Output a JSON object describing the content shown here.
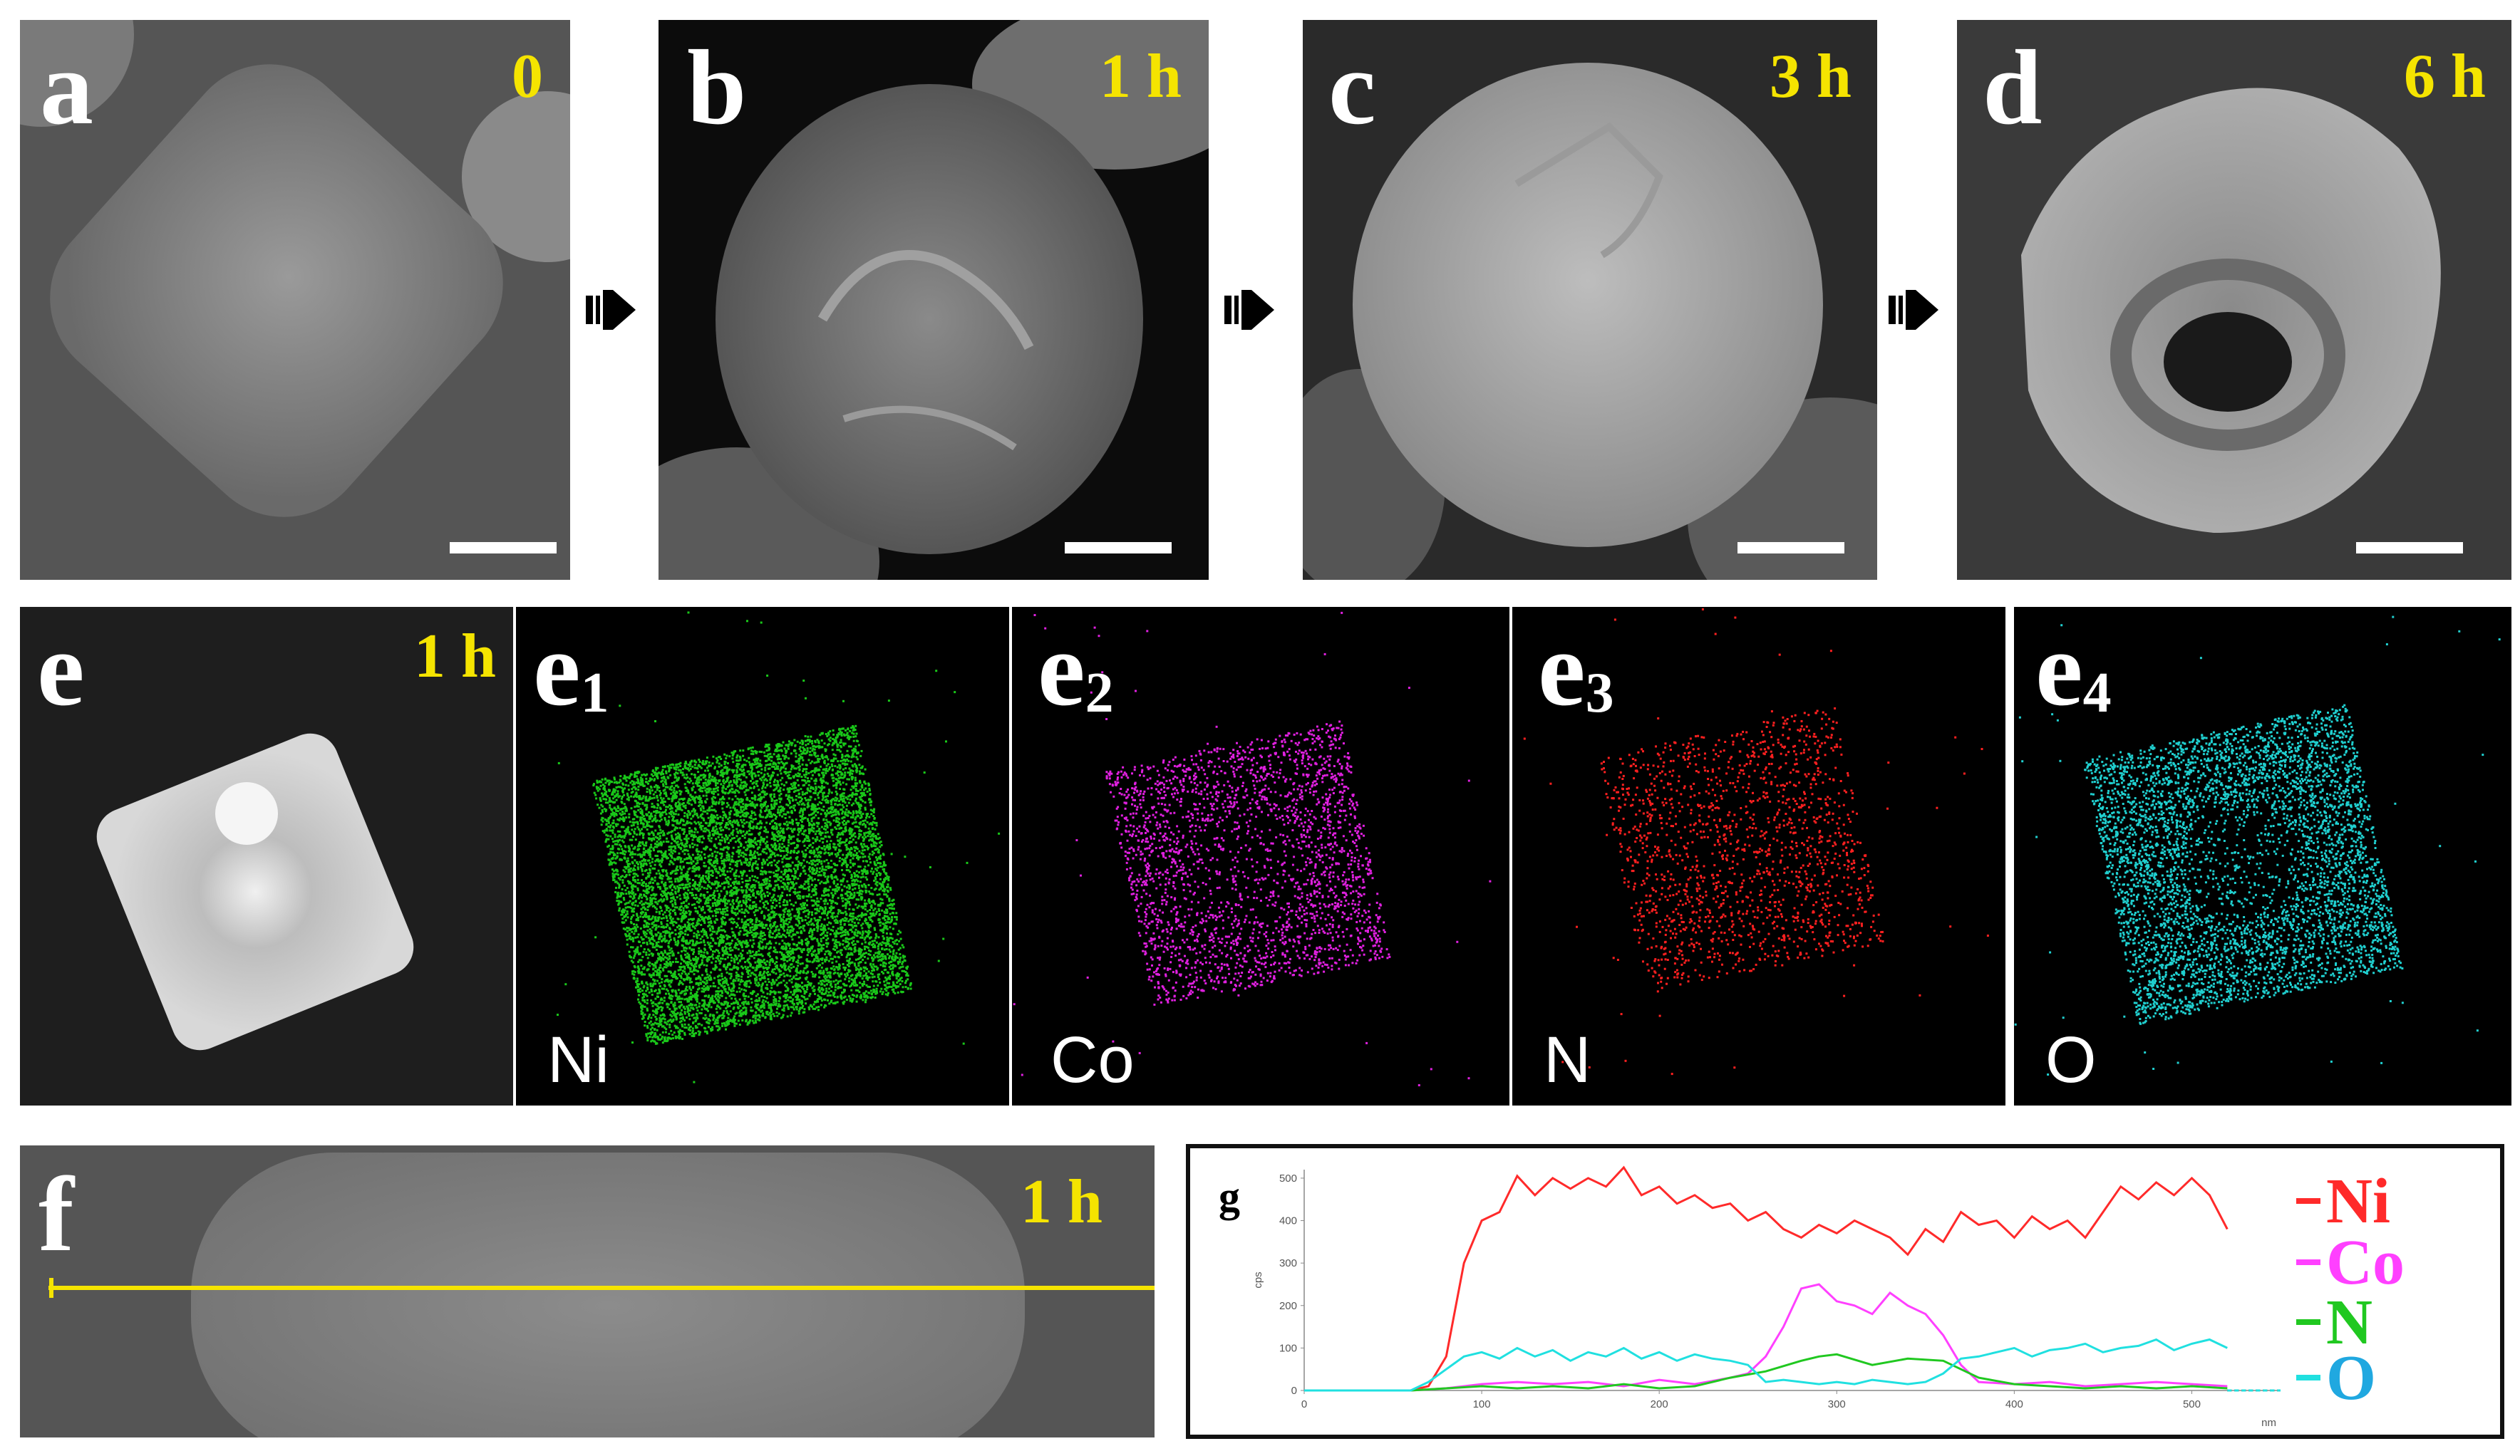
{
  "panels": {
    "a": {
      "letter": "a",
      "time": "0"
    },
    "b": {
      "letter": "b",
      "time": "1 h"
    },
    "c": {
      "letter": "c",
      "time": "3 h"
    },
    "d": {
      "letter": "d",
      "time": "6 h"
    },
    "e": {
      "letter": "e",
      "time": "1 h"
    },
    "e1": {
      "letter": "e",
      "sub": "1",
      "element": "Ni",
      "dot_color": "#19c819"
    },
    "e2": {
      "letter": "e",
      "sub": "2",
      "element": "Co",
      "dot_color": "#e020e0"
    },
    "e3": {
      "letter": "e",
      "sub": "3",
      "element": "N",
      "dot_color": "#ff2020"
    },
    "e4": {
      "letter": "e",
      "sub": "4",
      "element": "O",
      "dot_color": "#20d0d0"
    },
    "f": {
      "letter": "f",
      "time": "1 h",
      "line_color": "#f5e400"
    },
    "g": {
      "letter": "g"
    }
  },
  "chart_data": {
    "type": "line",
    "title": "",
    "xlabel": "nm",
    "ylabel": "cps",
    "xlim": [
      0,
      550
    ],
    "ylim": [
      0,
      520
    ],
    "xticks": [
      0,
      100,
      200,
      300,
      400,
      500
    ],
    "yticks": [
      0,
      100,
      200,
      300,
      400,
      500
    ],
    "legend_position": "right",
    "series": [
      {
        "name": "Ni",
        "color": "#ff2a2a",
        "x": [
          60,
          70,
          80,
          90,
          100,
          110,
          120,
          130,
          140,
          150,
          160,
          170,
          180,
          190,
          200,
          210,
          220,
          230,
          240,
          250,
          260,
          270,
          280,
          290,
          300,
          310,
          320,
          330,
          340,
          350,
          360,
          370,
          380,
          390,
          400,
          410,
          420,
          430,
          440,
          450,
          460,
          470,
          480,
          490,
          500,
          510,
          520
        ],
        "y": [
          0,
          10,
          80,
          300,
          400,
          420,
          505,
          460,
          500,
          475,
          500,
          480,
          525,
          460,
          480,
          440,
          460,
          430,
          440,
          400,
          420,
          380,
          360,
          390,
          370,
          400,
          380,
          360,
          320,
          380,
          350,
          420,
          390,
          400,
          360,
          410,
          380,
          400,
          360,
          420,
          480,
          450,
          490,
          460,
          500,
          460,
          380
        ]
      },
      {
        "name": "Co",
        "color": "#ff40ff",
        "x": [
          60,
          80,
          100,
          120,
          140,
          160,
          180,
          200,
          220,
          240,
          250,
          260,
          270,
          280,
          290,
          300,
          310,
          320,
          330,
          340,
          350,
          360,
          370,
          380,
          400,
          420,
          440,
          460,
          480,
          500,
          520
        ],
        "y": [
          0,
          5,
          15,
          20,
          15,
          20,
          10,
          25,
          15,
          30,
          40,
          80,
          150,
          240,
          250,
          210,
          200,
          180,
          230,
          200,
          180,
          130,
          60,
          20,
          15,
          20,
          10,
          15,
          20,
          15,
          10
        ]
      },
      {
        "name": "N",
        "color": "#20c820",
        "x": [
          60,
          80,
          100,
          120,
          140,
          160,
          180,
          200,
          220,
          240,
          260,
          280,
          290,
          300,
          320,
          340,
          360,
          380,
          400,
          420,
          440,
          460,
          480,
          500,
          520
        ],
        "y": [
          0,
          5,
          10,
          5,
          10,
          5,
          15,
          5,
          10,
          30,
          45,
          70,
          80,
          85,
          60,
          75,
          70,
          30,
          15,
          10,
          5,
          10,
          5,
          10,
          5
        ]
      },
      {
        "name": "O",
        "color": "#20e0e0",
        "x": [
          60,
          70,
          80,
          90,
          100,
          110,
          120,
          130,
          140,
          150,
          160,
          170,
          180,
          190,
          200,
          210,
          220,
          230,
          240,
          250,
          260,
          270,
          280,
          290,
          300,
          310,
          320,
          330,
          340,
          350,
          360,
          370,
          380,
          390,
          400,
          410,
          420,
          430,
          440,
          450,
          460,
          470,
          480,
          490,
          500,
          510,
          520
        ],
        "y": [
          0,
          20,
          50,
          80,
          90,
          75,
          100,
          80,
          95,
          70,
          90,
          80,
          100,
          75,
          90,
          70,
          85,
          75,
          70,
          60,
          20,
          25,
          20,
          15,
          20,
          15,
          25,
          20,
          15,
          20,
          40,
          75,
          80,
          90,
          100,
          80,
          95,
          100,
          110,
          90,
          100,
          105,
          120,
          95,
          110,
          120,
          100
        ]
      }
    ]
  }
}
